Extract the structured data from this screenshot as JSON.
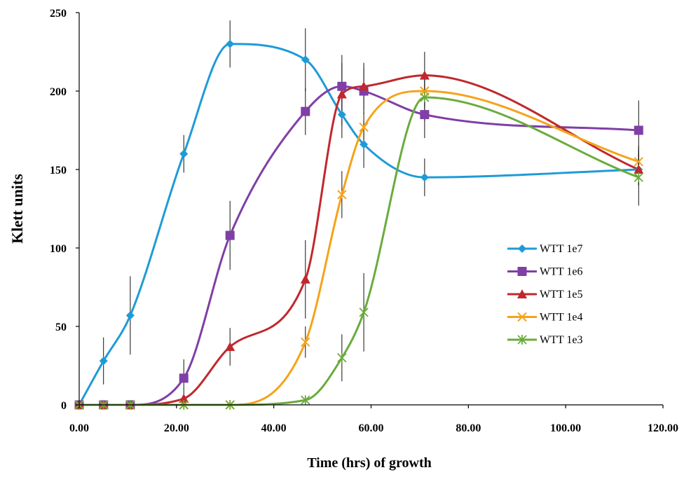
{
  "chart_data": {
    "type": "line",
    "title": "",
    "xlabel": "Time (hrs) of growth",
    "ylabel": "Klett units",
    "xlim": [
      0,
      120
    ],
    "ylim": [
      0,
      250
    ],
    "xticks": [
      0,
      20,
      40,
      60,
      80,
      100,
      120
    ],
    "xtick_labels": [
      "0.00",
      "20.00",
      "40.00",
      "60.00",
      "80.00",
      "100.00",
      "120.00"
    ],
    "yticks": [
      0,
      50,
      100,
      150,
      200,
      250
    ],
    "ytick_labels": [
      "0",
      "50",
      "100",
      "150",
      "200",
      "250"
    ],
    "grid": false,
    "legend_position": "right",
    "series": [
      {
        "name": "WTT 1e7",
        "color": "#1e9bd7",
        "marker": "diamond",
        "x": [
          0,
          5,
          10.5,
          21.5,
          31,
          46.5,
          54,
          58.5,
          71,
          115
        ],
        "y": [
          0,
          28,
          57,
          160,
          230,
          220,
          185,
          166,
          145,
          150
        ],
        "err": [
          0,
          15,
          25,
          12,
          15,
          20,
          15,
          15,
          12,
          10
        ]
      },
      {
        "name": "WTT 1e6",
        "color": "#7f3fa6",
        "marker": "square",
        "x": [
          0,
          5,
          10.5,
          21.5,
          31,
          46.5,
          54,
          58.5,
          71,
          115
        ],
        "y": [
          0,
          0,
          0,
          17,
          108,
          187,
          203,
          200,
          185,
          175
        ],
        "err": [
          0,
          0,
          0,
          12,
          22,
          15,
          20,
          15,
          15,
          19
        ]
      },
      {
        "name": "WTT 1e5",
        "color": "#c0282d",
        "marker": "triangle",
        "x": [
          0,
          5,
          10.5,
          21.5,
          31,
          46.5,
          54,
          58.5,
          71,
          115
        ],
        "y": [
          0,
          0,
          0,
          4,
          37,
          80,
          198,
          203,
          210,
          150
        ],
        "err": [
          0,
          0,
          0,
          0,
          12,
          25,
          20,
          15,
          15,
          10
        ]
      },
      {
        "name": "WTT 1e4",
        "color": "#f5a31a",
        "marker": "x",
        "x": [
          0,
          5,
          10.5,
          21.5,
          31,
          46.5,
          54,
          58.5,
          71,
          115
        ],
        "y": [
          0,
          0,
          0,
          0,
          0,
          40,
          134,
          177,
          200,
          155
        ],
        "err": [
          0,
          0,
          0,
          0,
          0,
          10,
          15,
          10,
          10,
          10
        ]
      },
      {
        "name": "WTT 1e3",
        "color": "#6aab3c",
        "marker": "star",
        "x": [
          0,
          5,
          10.5,
          21.5,
          31,
          46.5,
          54,
          58.5,
          71,
          115
        ],
        "y": [
          0,
          0,
          0,
          0,
          0,
          3,
          30,
          59,
          196,
          145
        ],
        "err": [
          0,
          0,
          0,
          0,
          0,
          0,
          15,
          25,
          15,
          18
        ]
      }
    ]
  }
}
